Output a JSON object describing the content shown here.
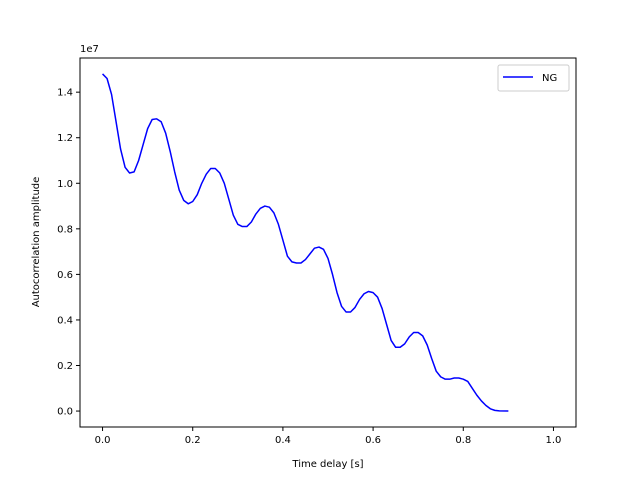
{
  "chart_data": {
    "type": "line",
    "title": "",
    "xlabel": "Time delay [s]",
    "ylabel": "Autocorrelation amplitude",
    "y_offset_label": "1e7",
    "xlim": [
      -0.05,
      1.05
    ],
    "ylim": [
      -0.07,
      1.55
    ],
    "x_ticks": [
      0.0,
      0.2,
      0.4,
      0.6,
      0.8,
      1.0
    ],
    "x_tick_labels": [
      "0.0",
      "0.2",
      "0.4",
      "0.6",
      "0.8",
      "1.0"
    ],
    "y_ticks": [
      0.0,
      0.2,
      0.4,
      0.6,
      0.8,
      1.0,
      1.2,
      1.4
    ],
    "y_tick_labels": [
      "0.0",
      "0.2",
      "0.4",
      "0.6",
      "0.8",
      "1.0",
      "1.2",
      "1.4"
    ],
    "grid": false,
    "legend": {
      "position": "top-right",
      "entries": [
        "NG"
      ]
    },
    "series": [
      {
        "name": "NG",
        "color": "#0000ff",
        "points": [
          [
            0.0,
            1.48
          ],
          [
            0.01,
            1.46
          ],
          [
            0.02,
            1.39
          ],
          [
            0.03,
            1.27
          ],
          [
            0.04,
            1.15
          ],
          [
            0.05,
            1.07
          ],
          [
            0.06,
            1.045
          ],
          [
            0.07,
            1.05
          ],
          [
            0.08,
            1.1
          ],
          [
            0.09,
            1.17
          ],
          [
            0.1,
            1.24
          ],
          [
            0.11,
            1.28
          ],
          [
            0.12,
            1.283
          ],
          [
            0.13,
            1.27
          ],
          [
            0.14,
            1.22
          ],
          [
            0.15,
            1.14
          ],
          [
            0.16,
            1.05
          ],
          [
            0.17,
            0.97
          ],
          [
            0.18,
            0.925
          ],
          [
            0.19,
            0.91
          ],
          [
            0.2,
            0.92
          ],
          [
            0.21,
            0.95
          ],
          [
            0.22,
            1.0
          ],
          [
            0.23,
            1.04
          ],
          [
            0.24,
            1.065
          ],
          [
            0.25,
            1.065
          ],
          [
            0.26,
            1.045
          ],
          [
            0.27,
            1.0
          ],
          [
            0.28,
            0.93
          ],
          [
            0.29,
            0.86
          ],
          [
            0.3,
            0.82
          ],
          [
            0.31,
            0.81
          ],
          [
            0.32,
            0.81
          ],
          [
            0.33,
            0.83
          ],
          [
            0.34,
            0.865
          ],
          [
            0.35,
            0.89
          ],
          [
            0.36,
            0.9
          ],
          [
            0.37,
            0.895
          ],
          [
            0.38,
            0.87
          ],
          [
            0.39,
            0.82
          ],
          [
            0.4,
            0.75
          ],
          [
            0.41,
            0.68
          ],
          [
            0.42,
            0.655
          ],
          [
            0.43,
            0.65
          ],
          [
            0.44,
            0.65
          ],
          [
            0.45,
            0.665
          ],
          [
            0.46,
            0.69
          ],
          [
            0.47,
            0.715
          ],
          [
            0.48,
            0.72
          ],
          [
            0.49,
            0.71
          ],
          [
            0.5,
            0.67
          ],
          [
            0.51,
            0.6
          ],
          [
            0.52,
            0.52
          ],
          [
            0.53,
            0.46
          ],
          [
            0.54,
            0.435
          ],
          [
            0.55,
            0.435
          ],
          [
            0.56,
            0.455
          ],
          [
            0.57,
            0.49
          ],
          [
            0.58,
            0.515
          ],
          [
            0.59,
            0.525
          ],
          [
            0.6,
            0.52
          ],
          [
            0.61,
            0.5
          ],
          [
            0.62,
            0.45
          ],
          [
            0.63,
            0.38
          ],
          [
            0.64,
            0.31
          ],
          [
            0.65,
            0.28
          ],
          [
            0.66,
            0.28
          ],
          [
            0.67,
            0.295
          ],
          [
            0.68,
            0.325
          ],
          [
            0.69,
            0.345
          ],
          [
            0.7,
            0.345
          ],
          [
            0.71,
            0.33
          ],
          [
            0.72,
            0.29
          ],
          [
            0.73,
            0.23
          ],
          [
            0.74,
            0.175
          ],
          [
            0.75,
            0.15
          ],
          [
            0.76,
            0.14
          ],
          [
            0.77,
            0.14
          ],
          [
            0.78,
            0.145
          ],
          [
            0.79,
            0.145
          ],
          [
            0.8,
            0.14
          ],
          [
            0.81,
            0.13
          ],
          [
            0.82,
            0.1
          ],
          [
            0.83,
            0.07
          ],
          [
            0.84,
            0.045
          ],
          [
            0.85,
            0.025
          ],
          [
            0.86,
            0.01
          ],
          [
            0.87,
            0.003
          ],
          [
            0.88,
            0.001
          ],
          [
            0.9,
            0.0
          ]
        ]
      }
    ]
  }
}
